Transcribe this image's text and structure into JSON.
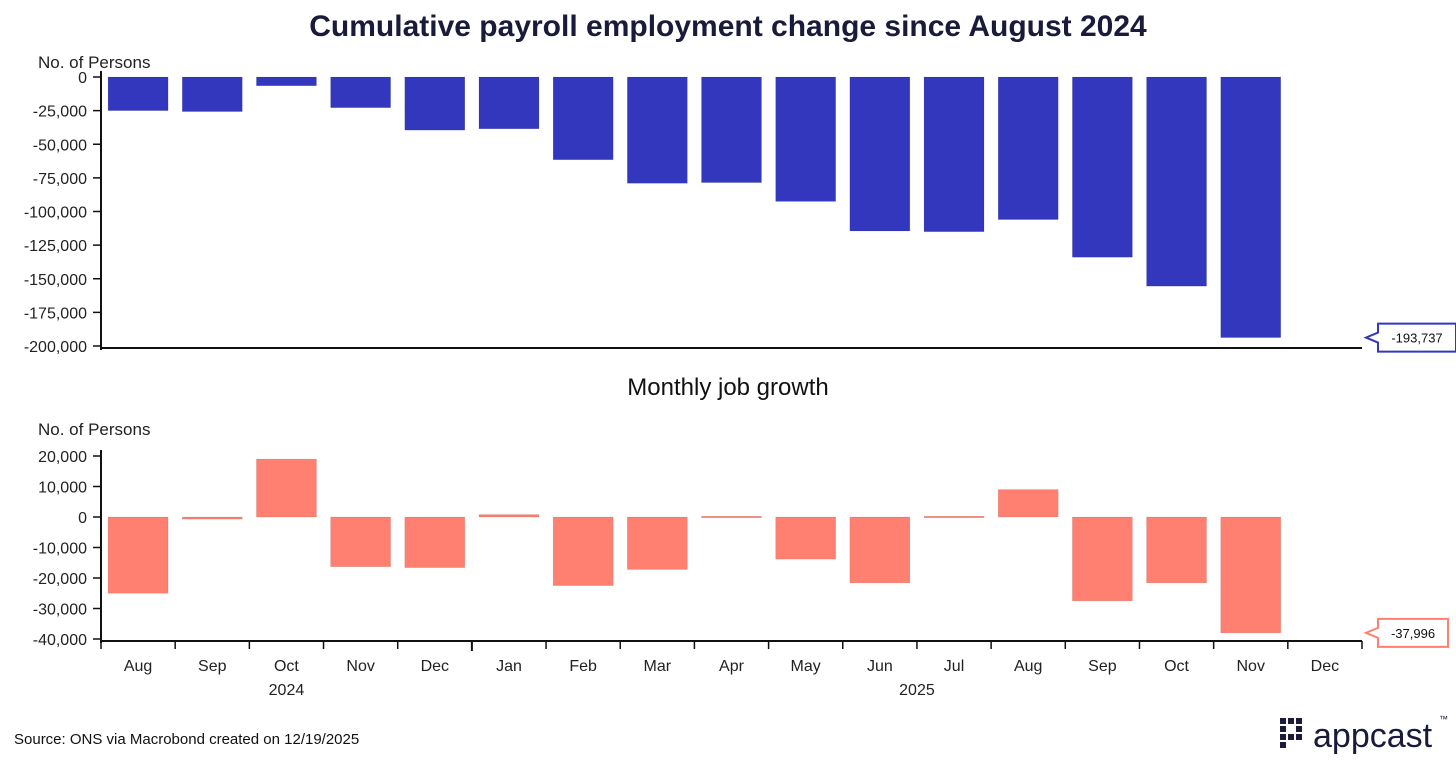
{
  "chart_data": [
    {
      "type": "bar",
      "title": "Cumulative payroll employment change since August 2024",
      "ylabel": "No. of Persons",
      "xlabel": "",
      "ylim": [
        -200000,
        0
      ],
      "yticks": [
        0,
        -25000,
        -50000,
        -75000,
        -100000,
        -125000,
        -150000,
        -175000,
        -200000
      ],
      "ytick_labels": [
        "0",
        "-25,000",
        "-50,000",
        "-75,000",
        "-100,000",
        "-125,000",
        "-150,000",
        "-175,000",
        "-200,000"
      ],
      "categories": [
        "Aug",
        "Sep",
        "Oct",
        "Nov",
        "Dec",
        "Jan",
        "Feb",
        "Mar",
        "Apr",
        "May",
        "Jun",
        "Jul",
        "Aug",
        "Sep",
        "Oct",
        "Nov",
        "Dec"
      ],
      "values": [
        -25000,
        -25700,
        -6500,
        -22800,
        -39500,
        -38500,
        -61500,
        -79000,
        -78500,
        -92500,
        -114500,
        -115000,
        -106000,
        -134000,
        -155500,
        -193737,
        null
      ],
      "color": "#3237bd",
      "callout": {
        "label": "-193,737",
        "value": -193737
      }
    },
    {
      "type": "bar",
      "title": "Monthly job growth",
      "ylabel": "No. of Persons",
      "xlabel": "",
      "ylim": [
        -40000,
        20000
      ],
      "yticks": [
        20000,
        10000,
        0,
        -10000,
        -20000,
        -30000,
        -40000
      ],
      "ytick_labels": [
        "20,000",
        "10,000",
        "0",
        "-10,000",
        "-20,000",
        "-30,000",
        "-40,000"
      ],
      "categories": [
        "Aug",
        "Sep",
        "Oct",
        "Nov",
        "Dec",
        "Jan",
        "Feb",
        "Mar",
        "Apr",
        "May",
        "Jun",
        "Jul",
        "Aug",
        "Sep",
        "Oct",
        "Nov",
        "Dec"
      ],
      "values": [
        -25000,
        -700,
        19000,
        -16300,
        -16600,
        800,
        -22500,
        -17200,
        300,
        -13800,
        -21600,
        -200,
        9000,
        -27500,
        -21600,
        -37996,
        null
      ],
      "color": "#ff7f70",
      "callout": {
        "label": "-37,996",
        "value": -37996
      },
      "year_labels": [
        {
          "label": "2024",
          "span": [
            0,
            4
          ]
        },
        {
          "label": "2025",
          "span": [
            5,
            16
          ]
        }
      ]
    }
  ],
  "footer": {
    "source": "Source: ONS via Macrobond created on 12/19/2025",
    "logo_text": "appcast",
    "logo_tm": "™"
  },
  "colors": {
    "cumulative_bar": "#3237bd",
    "monthly_bar": "#ff7f70",
    "axis": "#111111",
    "logo": "#1a1a3a"
  }
}
